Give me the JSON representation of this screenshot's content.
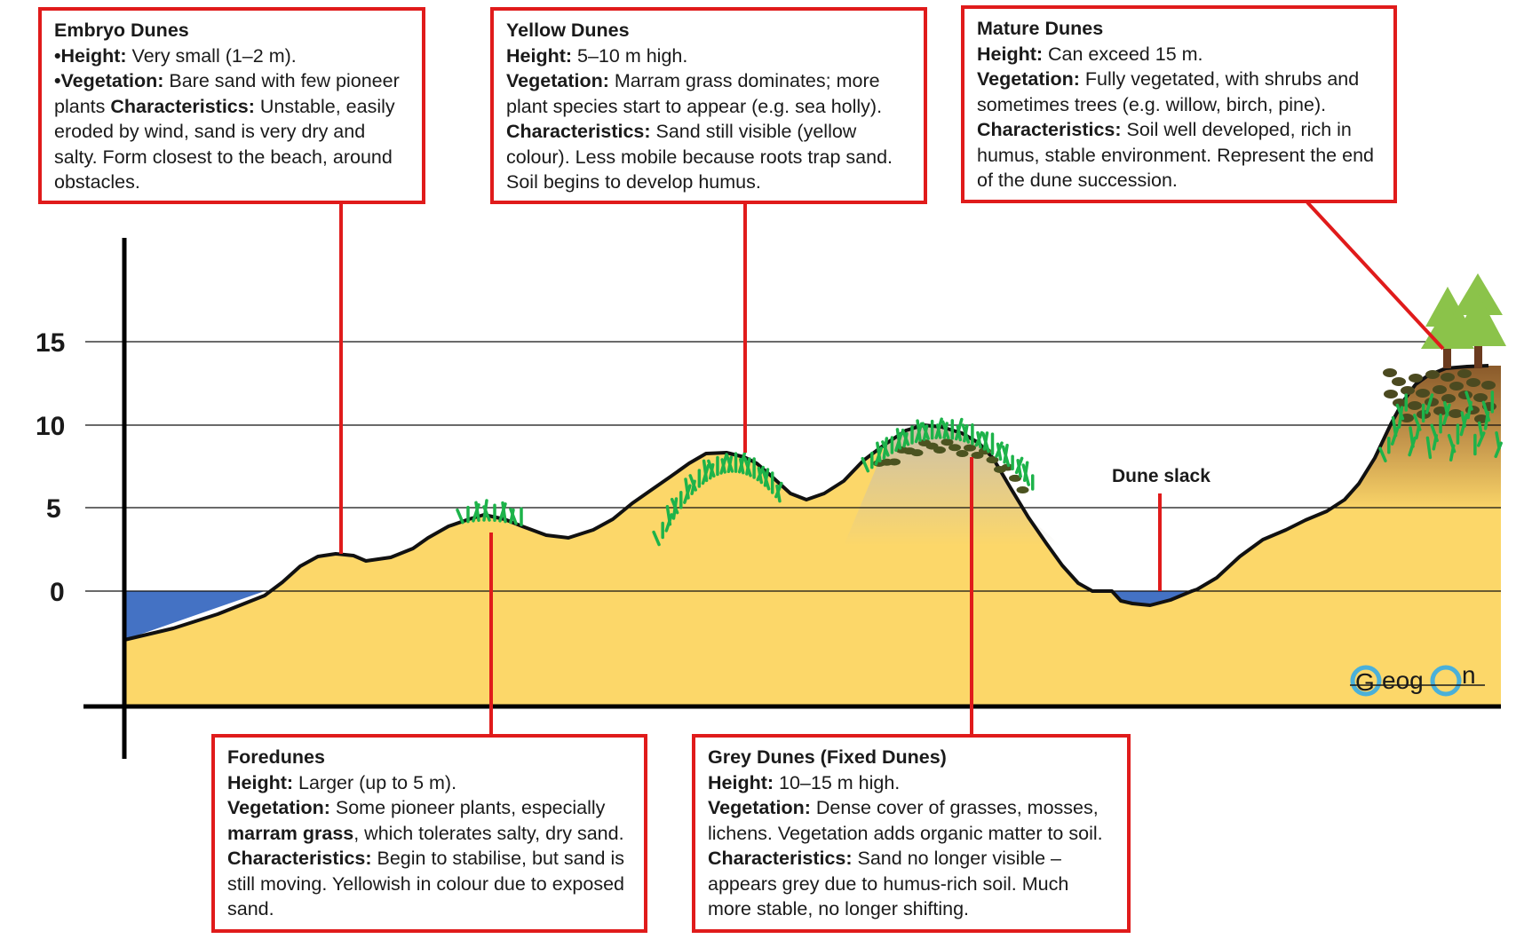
{
  "axis": {
    "ticks": [
      "15",
      "10",
      "5",
      "0"
    ]
  },
  "slack_label": "Dune slack",
  "logo": {
    "p1": "eog",
    "p2": "n"
  },
  "colors": {
    "sand": "#fcd769",
    "water": "#4472c4",
    "box_border": "#e01b1b",
    "grass": "#1db34a",
    "tree": "#8bc34a",
    "trunk": "#6b3b1f"
  },
  "boxes": {
    "embryo": {
      "title": "Embryo Dunes",
      "height_label": "•Height:",
      "height_text": " Very small (1–2 m).",
      "veg_label": "•Vegetation:",
      "veg_text": " Bare sand with few pioneer plants ",
      "char_label": "Characteristics:",
      "char_text": " Unstable, easily eroded by wind, sand is very dry and salty. Form closest to the beach, around obstacles."
    },
    "yellow": {
      "title": "Yellow Dunes",
      "height_label": "Height:",
      "height_text": " 5–10 m high.",
      "veg_label": "Vegetation:",
      "veg_text": " Marram grass dominates; more plant species start to appear (e.g. sea holly).",
      "char_label": "Characteristics:",
      "char_text": " Sand still visible (yellow colour). Less mobile because roots trap sand. Soil begins to develop humus."
    },
    "mature": {
      "title": "Mature Dunes",
      "height_label": "Height:",
      "height_text": " Can exceed 15 m.",
      "veg_label": "Vegetation:",
      "veg_text": " Fully vegetated, with shrubs and sometimes trees (e.g. willow, birch, pine).",
      "char_label": "Characteristics:",
      "char_text": " Soil well developed, rich in humus, stable environment. Represent the end of the dune succession."
    },
    "fore": {
      "title": "Foredunes",
      "height_label": "Height:",
      "height_text": " Larger (up to 5 m).",
      "veg_label": "Vegetation:",
      "veg_text": " Some pioneer plants, especially ",
      "veg_bold": "marram grass",
      "veg_text2": ", which tolerates salty, dry sand.",
      "char_label": "Characteristics:",
      "char_text": " Begin to stabilise, but sand is still moving. Yellowish in colour due to exposed sand."
    },
    "grey": {
      "title": "Grey Dunes (Fixed Dunes)",
      "height_label": "Height:",
      "height_text": " 10–15 m high.",
      "veg_label": "Vegetation:",
      "veg_text": " Dense cover of grasses, mosses, lichens. Vegetation adds organic matter to soil.",
      "char_label": "Characteristics:",
      "char_text": " Sand no longer visible – appears grey due to humus-rich soil. Much more stable, no longer shifting."
    }
  }
}
